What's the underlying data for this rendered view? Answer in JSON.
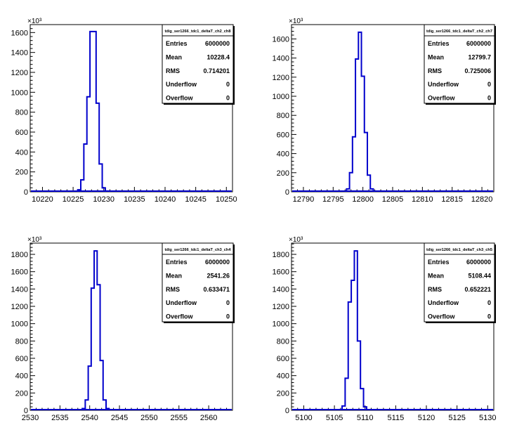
{
  "exponent_label": "×10³",
  "line_color": "#0000cc",
  "panels": [
    {
      "stats": {
        "title": "tdig_ser1266_tdc1_deltaT_ch2_ch8",
        "rows": [
          {
            "label": "Entries",
            "value": "6000000"
          },
          {
            "label": "Mean",
            "value": "10228.4"
          },
          {
            "label": "RMS",
            "value": "0.714201"
          },
          {
            "label": "Underflow",
            "value": "0"
          },
          {
            "label": "Overflow",
            "value": "0"
          }
        ]
      }
    },
    {
      "stats": {
        "title": "tdig_ser1266_tdc1_deltaT_ch2_ch7",
        "rows": [
          {
            "label": "Entries",
            "value": "6000000"
          },
          {
            "label": "Mean",
            "value": "12799.7"
          },
          {
            "label": "RMS",
            "value": "0.725006"
          },
          {
            "label": "Underflow",
            "value": "0"
          },
          {
            "label": "Overflow",
            "value": "0"
          }
        ]
      }
    },
    {
      "stats": {
        "title": "tdig_ser1266_tdc1_deltaT_ch3_ch4",
        "rows": [
          {
            "label": "Entries",
            "value": "6000000"
          },
          {
            "label": "Mean",
            "value": "2541.26"
          },
          {
            "label": "RMS",
            "value": "0.633471"
          },
          {
            "label": "Underflow",
            "value": "0"
          },
          {
            "label": "Overflow",
            "value": "0"
          }
        ]
      }
    },
    {
      "stats": {
        "title": "tdig_ser1266_tdc1_deltaT_ch3_ch5",
        "rows": [
          {
            "label": "Entries",
            "value": "6000000"
          },
          {
            "label": "Mean",
            "value": "5108.44"
          },
          {
            "label": "RMS",
            "value": "0.652221"
          },
          {
            "label": "Underflow",
            "value": "0"
          },
          {
            "label": "Overflow",
            "value": "0"
          }
        ]
      }
    }
  ],
  "chart_data": [
    {
      "type": "histogram",
      "xlim": [
        10218,
        10251
      ],
      "ylim": [
        0,
        1680
      ],
      "x_ticks": [
        10220,
        10225,
        10230,
        10235,
        10240,
        10245,
        10250
      ],
      "y_ticks": [
        0,
        200,
        400,
        600,
        800,
        1000,
        1200,
        1400,
        1600
      ],
      "bin_width": 0.5,
      "bins": [
        {
          "x": 10226.0,
          "y": 20
        },
        {
          "x": 10226.5,
          "y": 120
        },
        {
          "x": 10227.0,
          "y": 480
        },
        {
          "x": 10227.5,
          "y": 955
        },
        {
          "x": 10228.0,
          "y": 1610
        },
        {
          "x": 10228.5,
          "y": 1610
        },
        {
          "x": 10229.0,
          "y": 890
        },
        {
          "x": 10229.5,
          "y": 280
        },
        {
          "x": 10230.0,
          "y": 40
        },
        {
          "x": 10230.5,
          "y": 8
        }
      ]
    },
    {
      "type": "histogram",
      "xlim": [
        12788,
        12822
      ],
      "ylim": [
        0,
        1750
      ],
      "x_ticks": [
        12790,
        12795,
        12800,
        12805,
        12810,
        12815,
        12820
      ],
      "y_ticks": [
        0,
        200,
        400,
        600,
        800,
        1000,
        1200,
        1400,
        1600
      ],
      "bin_width": 0.5,
      "bins": [
        {
          "x": 12797.5,
          "y": 30
        },
        {
          "x": 12798.0,
          "y": 200
        },
        {
          "x": 12798.5,
          "y": 575
        },
        {
          "x": 12799.0,
          "y": 1390
        },
        {
          "x": 12799.5,
          "y": 1670
        },
        {
          "x": 12800.0,
          "y": 1210
        },
        {
          "x": 12800.5,
          "y": 620
        },
        {
          "x": 12801.0,
          "y": 175
        },
        {
          "x": 12801.5,
          "y": 30
        }
      ]
    },
    {
      "type": "histogram",
      "xlim": [
        2530,
        2564
      ],
      "ylim": [
        0,
        1930
      ],
      "x_ticks": [
        2530,
        2535,
        2540,
        2545,
        2550,
        2555,
        2560
      ],
      "y_ticks": [
        0,
        200,
        400,
        600,
        800,
        1000,
        1200,
        1400,
        1600,
        1800
      ],
      "bin_width": 0.5,
      "bins": [
        {
          "x": 2539.0,
          "y": 20
        },
        {
          "x": 2539.5,
          "y": 120
        },
        {
          "x": 2540.0,
          "y": 510
        },
        {
          "x": 2540.5,
          "y": 1410
        },
        {
          "x": 2541.0,
          "y": 1840
        },
        {
          "x": 2541.5,
          "y": 1450
        },
        {
          "x": 2542.0,
          "y": 575
        },
        {
          "x": 2542.5,
          "y": 120
        },
        {
          "x": 2543.0,
          "y": 20
        }
      ]
    },
    {
      "type": "histogram",
      "xlim": [
        5098,
        5131
      ],
      "ylim": [
        0,
        1930
      ],
      "x_ticks": [
        5100,
        5105,
        5110,
        5115,
        5120,
        5125,
        5130
      ],
      "y_ticks": [
        0,
        200,
        400,
        600,
        800,
        1000,
        1200,
        1400,
        1600,
        1800
      ],
      "bin_width": 0.5,
      "bins": [
        {
          "x": 5106.5,
          "y": 50
        },
        {
          "x": 5107.0,
          "y": 370
        },
        {
          "x": 5107.5,
          "y": 1250
        },
        {
          "x": 5108.0,
          "y": 1500
        },
        {
          "x": 5108.5,
          "y": 1840
        },
        {
          "x": 5109.0,
          "y": 800
        },
        {
          "x": 5109.5,
          "y": 250
        },
        {
          "x": 5110.0,
          "y": 40
        }
      ]
    }
  ]
}
